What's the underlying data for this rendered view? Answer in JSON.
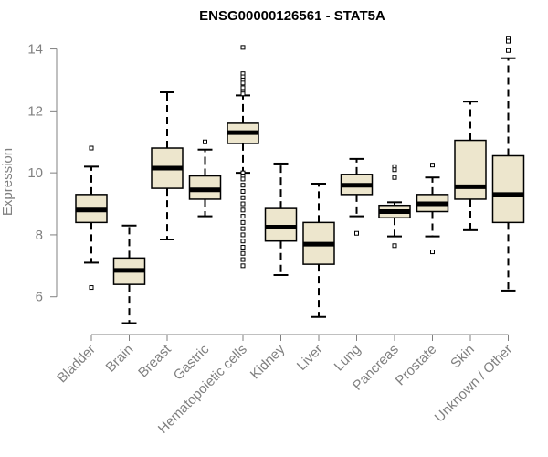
{
  "chart_data": {
    "type": "box",
    "title": "ENSG00000126561 - STAT5A",
    "xlabel": "",
    "ylabel": "Expression",
    "ylim": [
      4.9,
      14.4
    ],
    "yticks": [
      6,
      8,
      10,
      12,
      14
    ],
    "grid": false,
    "box_fill": "#ede6cd",
    "box_stroke": "#000000",
    "categories": [
      "Bladder",
      "Brain",
      "Breast",
      "Gastric",
      "Hematopoietic cells",
      "Kidney",
      "Liver",
      "Lung",
      "Pancreas",
      "Prostate",
      "Skin",
      "Unknown / Other"
    ],
    "boxes": [
      {
        "label": "Bladder",
        "whisker_low": 7.1,
        "q1": 8.4,
        "median": 8.8,
        "q3": 9.3,
        "whisker_high": 10.2,
        "outliers": [
          10.8,
          6.3
        ]
      },
      {
        "label": "Brain",
        "whisker_low": 5.15,
        "q1": 6.4,
        "median": 6.85,
        "q3": 7.25,
        "whisker_high": 8.3,
        "outliers": []
      },
      {
        "label": "Breast",
        "whisker_low": 7.85,
        "q1": 9.5,
        "median": 10.15,
        "q3": 10.8,
        "whisker_high": 12.6,
        "outliers": []
      },
      {
        "label": "Gastric",
        "whisker_low": 8.6,
        "q1": 9.15,
        "median": 9.45,
        "q3": 9.9,
        "whisker_high": 10.75,
        "outliers": [
          11.0
        ]
      },
      {
        "label": "Hematopoietic cells",
        "whisker_low": 10.0,
        "q1": 10.95,
        "median": 11.3,
        "q3": 11.6,
        "whisker_high": 12.5,
        "outliers": [
          14.05,
          13.2,
          13.1,
          13.0,
          12.9,
          12.75,
          12.6,
          12.55,
          10.0,
          9.9,
          9.8,
          9.6,
          9.4,
          9.2,
          9.0,
          8.8,
          8.6,
          8.4,
          8.2,
          8.0,
          7.8,
          7.6,
          7.4,
          7.2,
          7.0
        ]
      },
      {
        "label": "Kidney",
        "whisker_low": 6.7,
        "q1": 7.8,
        "median": 8.25,
        "q3": 8.85,
        "whisker_high": 10.3,
        "outliers": []
      },
      {
        "label": "Liver",
        "whisker_low": 5.35,
        "q1": 7.05,
        "median": 7.7,
        "q3": 8.4,
        "whisker_high": 9.65,
        "outliers": []
      },
      {
        "label": "Lung",
        "whisker_low": 8.6,
        "q1": 9.3,
        "median": 9.6,
        "q3": 9.95,
        "whisker_high": 10.45,
        "outliers": [
          8.05
        ]
      },
      {
        "label": "Pancreas",
        "whisker_low": 7.95,
        "q1": 8.55,
        "median": 8.75,
        "q3": 8.95,
        "whisker_high": 9.05,
        "outliers": [
          10.2,
          10.1,
          9.85,
          7.65
        ]
      },
      {
        "label": "Prostate",
        "whisker_low": 7.95,
        "q1": 8.75,
        "median": 9.0,
        "q3": 9.3,
        "whisker_high": 9.85,
        "outliers": [
          10.25,
          7.45
        ]
      },
      {
        "label": "Skin",
        "whisker_low": 8.15,
        "q1": 9.15,
        "median": 9.55,
        "q3": 11.05,
        "whisker_high": 12.3,
        "outliers": []
      },
      {
        "label": "Unknown / Other",
        "whisker_low": 6.2,
        "q1": 8.4,
        "median": 9.3,
        "q3": 10.55,
        "whisker_high": 13.7,
        "outliers": [
          14.35,
          14.25,
          13.95
        ]
      }
    ]
  }
}
